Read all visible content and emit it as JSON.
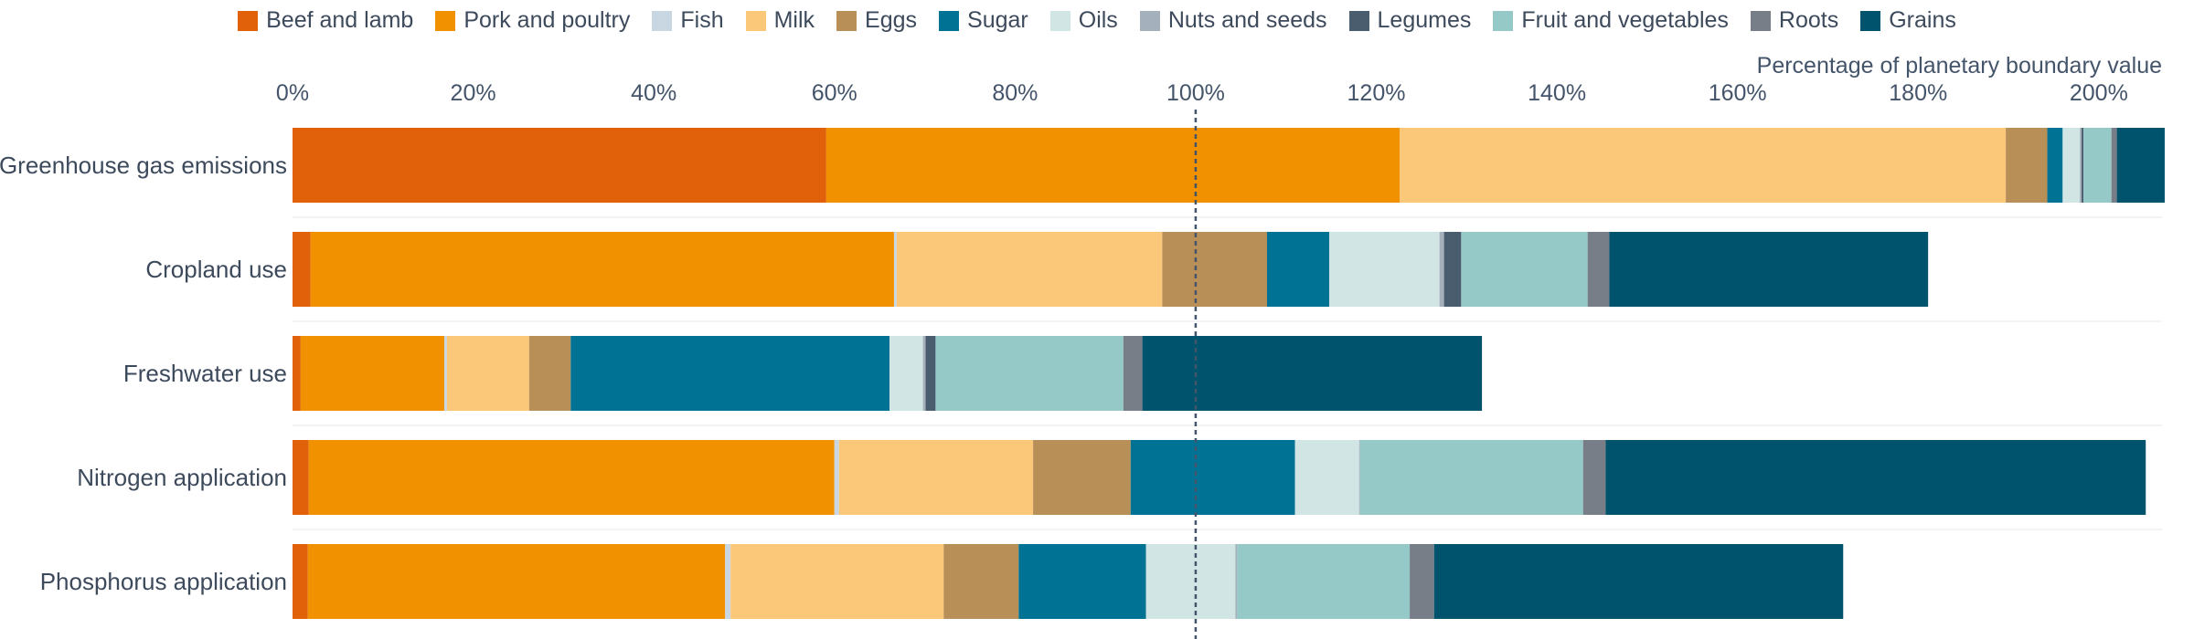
{
  "chart_data": {
    "type": "bar",
    "orientation": "horizontal",
    "stacked": true,
    "xlabel": "Percentage of planetary boundary value",
    "xlim": [
      0,
      207
    ],
    "xticks": [
      0,
      20,
      40,
      60,
      80,
      100,
      120,
      140,
      160,
      180,
      200
    ],
    "tick_suffix": "%",
    "reference_line": 100,
    "legend_position": "top",
    "grid": "horizontal-light",
    "categories": [
      "Greenhouse gas emissions",
      "Cropland use",
      "Freshwater use",
      "Nitrogen application",
      "Phosphorus application"
    ],
    "series": [
      {
        "name": "Beef and lamb",
        "color": "#e0610a",
        "values": [
          59.1,
          2.0,
          0.9,
          1.8,
          1.7
        ]
      },
      {
        "name": "Pork and poultry",
        "color": "#f29100",
        "values": [
          63.5,
          64.6,
          15.9,
          58.2,
          46.2
        ]
      },
      {
        "name": "Fish",
        "color": "#c9d7e3",
        "values": [
          0.0,
          0.3,
          0.3,
          0.5,
          0.6
        ]
      },
      {
        "name": "Milk",
        "color": "#fbc87a",
        "values": [
          67.1,
          29.4,
          9.1,
          21.5,
          23.6
        ]
      },
      {
        "name": "Eggs",
        "color": "#b88f57",
        "values": [
          4.6,
          11.6,
          4.6,
          10.8,
          8.3
        ]
      },
      {
        "name": "Sugar",
        "color": "#007394",
        "values": [
          1.7,
          6.9,
          35.3,
          18.2,
          14.1
        ]
      },
      {
        "name": "Oils",
        "color": "#d1e6e4",
        "values": [
          1.9,
          12.2,
          3.7,
          7.1,
          9.9
        ]
      },
      {
        "name": "Nuts and seeds",
        "color": "#a4b0bb",
        "values": [
          0.2,
          0.5,
          0.3,
          0.1,
          0.2
        ]
      },
      {
        "name": "Legumes",
        "color": "#4a5d6e",
        "values": [
          0.2,
          1.9,
          1.1,
          0.0,
          0.0
        ]
      },
      {
        "name": "Fruit and vegetables",
        "color": "#94c9c8",
        "values": [
          3.1,
          14.0,
          20.8,
          24.7,
          19.1
        ]
      },
      {
        "name": "Roots",
        "color": "#777e88",
        "values": [
          0.6,
          2.4,
          2.1,
          2.5,
          2.7
        ]
      },
      {
        "name": "Grains",
        "color": "#00536c",
        "values": [
          5.3,
          35.3,
          37.6,
          59.8,
          45.3
        ]
      }
    ]
  }
}
